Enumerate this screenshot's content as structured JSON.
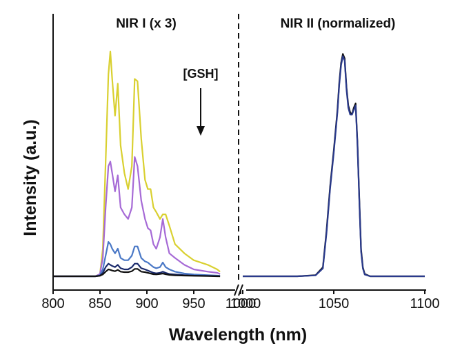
{
  "chart_data": {
    "type": "line",
    "xlabel": "Wavelength (nm)",
    "ylabel": "Intensity (a.u.)",
    "panels": [
      {
        "title": "NIR I (x 3)",
        "xlim": [
          800,
          1000
        ],
        "xticks": [
          800,
          850,
          900,
          950,
          1000
        ],
        "annotation": "[GSH]",
        "arrow_direction": "down",
        "series": [
          {
            "name": "yellow",
            "color": "#d9d030",
            "x": [
              800,
              845,
              850,
              853,
              856,
              859,
              861,
              863,
              866,
              869,
              872,
              876,
              880,
              884,
              887,
              890,
              894,
              898,
              901,
              904,
              907,
              910,
              914,
              917,
              920,
              924,
              930,
              940,
              950,
              965,
              975,
              978
            ],
            "y": [
              0,
              0,
              0.01,
              0.12,
              0.5,
              0.88,
              0.98,
              0.86,
              0.7,
              0.84,
              0.57,
              0.45,
              0.38,
              0.48,
              0.86,
              0.85,
              0.6,
              0.42,
              0.38,
              0.38,
              0.3,
              0.28,
              0.25,
              0.27,
              0.27,
              0.22,
              0.14,
              0.1,
              0.07,
              0.05,
              0.03,
              0.02
            ]
          },
          {
            "name": "purple",
            "color": "#a66ad6",
            "x": [
              800,
              845,
              850,
              853,
              856,
              859,
              861,
              863,
              866,
              869,
              872,
              876,
              880,
              884,
              887,
              890,
              894,
              898,
              901,
              904,
              907,
              910,
              914,
              917,
              920,
              924,
              930,
              940,
              950,
              965,
              975,
              978
            ],
            "y": [
              0,
              0,
              0.01,
              0.08,
              0.3,
              0.48,
              0.5,
              0.45,
              0.37,
              0.44,
              0.3,
              0.27,
              0.25,
              0.3,
              0.52,
              0.48,
              0.33,
              0.25,
              0.21,
              0.2,
              0.14,
              0.12,
              0.17,
              0.25,
              0.17,
              0.1,
              0.08,
              0.05,
              0.03,
              0.02,
              0.015,
              0.01
            ]
          },
          {
            "name": "blue",
            "color": "#4a78c6",
            "x": [
              800,
              845,
              850,
              853,
              856,
              859,
              861,
              863,
              866,
              869,
              872,
              876,
              880,
              884,
              887,
              890,
              894,
              898,
              901,
              904,
              907,
              910,
              914,
              917,
              920,
              924,
              930,
              940,
              950,
              965,
              975,
              978
            ],
            "y": [
              0,
              0,
              0.005,
              0.03,
              0.09,
              0.15,
              0.14,
              0.12,
              0.1,
              0.12,
              0.08,
              0.07,
              0.07,
              0.09,
              0.13,
              0.13,
              0.08,
              0.065,
              0.06,
              0.05,
              0.04,
              0.035,
              0.04,
              0.06,
              0.04,
              0.03,
              0.02,
              0.012,
              0.008,
              0.005,
              0.003,
              0.002
            ]
          },
          {
            "name": "navy",
            "color": "#1a2a6c",
            "x": [
              800,
              845,
              850,
              853,
              856,
              859,
              861,
              863,
              866,
              869,
              872,
              876,
              880,
              884,
              887,
              890,
              894,
              898,
              901,
              904,
              907,
              910,
              914,
              917,
              920,
              924,
              930,
              940,
              950,
              965,
              975,
              978
            ],
            "y": [
              0,
              0,
              0.003,
              0.015,
              0.04,
              0.055,
              0.05,
              0.045,
              0.04,
              0.05,
              0.035,
              0.03,
              0.03,
              0.04,
              0.055,
              0.055,
              0.035,
              0.03,
              0.025,
              0.02,
              0.015,
              0.013,
              0.015,
              0.02,
              0.015,
              0.01,
              0.008,
              0.005,
              0.003,
              0.002,
              0.001,
              0
            ]
          },
          {
            "name": "black",
            "color": "#111111",
            "x": [
              800,
              845,
              850,
              853,
              856,
              859,
              861,
              863,
              866,
              869,
              872,
              876,
              880,
              884,
              887,
              890,
              894,
              898,
              901,
              904,
              907,
              910,
              914,
              917,
              920,
              924,
              930,
              940,
              950,
              965,
              975,
              978
            ],
            "y": [
              0,
              0,
              0.002,
              0.008,
              0.02,
              0.03,
              0.028,
              0.025,
              0.022,
              0.028,
              0.02,
              0.018,
              0.018,
              0.022,
              0.032,
              0.032,
              0.02,
              0.018,
              0.015,
              0.012,
              0.009,
              0.008,
              0.01,
              0.012,
              0.009,
              0.006,
              0.004,
              0.003,
              0.002,
              0.001,
              0,
              0
            ]
          }
        ]
      },
      {
        "title": "NIR II (normalized)",
        "xlim": [
          1000,
          1100
        ],
        "xticks": [
          1000,
          1050,
          1100
        ],
        "series": [
          {
            "name": "black",
            "color": "#111111",
            "x": [
              1000,
              1030,
              1040,
              1044,
              1046,
              1048,
              1050,
              1052,
              1053,
              1054,
              1055,
              1056,
              1057,
              1058,
              1059,
              1060,
              1061,
              1062,
              1063,
              1064,
              1065,
              1066,
              1067,
              1070,
              1075,
              1080,
              1090,
              1100
            ],
            "y": [
              0,
              0,
              0.005,
              0.04,
              0.2,
              0.4,
              0.56,
              0.74,
              0.86,
              0.95,
              0.99,
              0.97,
              0.84,
              0.76,
              0.73,
              0.72,
              0.75,
              0.77,
              0.6,
              0.35,
              0.12,
              0.04,
              0.01,
              0,
              0,
              0,
              0,
              0
            ]
          },
          {
            "name": "navy",
            "color": "#2a3a8c",
            "x": [
              1000,
              1030,
              1040,
              1044,
              1046,
              1048,
              1050,
              1052,
              1053,
              1054,
              1055,
              1056,
              1057,
              1058,
              1059,
              1060,
              1061,
              1062,
              1063,
              1064,
              1065,
              1066,
              1067,
              1070,
              1075,
              1080,
              1090,
              1100
            ],
            "y": [
              0,
              0,
              0.004,
              0.035,
              0.19,
              0.39,
              0.55,
              0.73,
              0.85,
              0.94,
              0.98,
              0.96,
              0.83,
              0.75,
              0.72,
              0.72,
              0.74,
              0.76,
              0.59,
              0.34,
              0.11,
              0.035,
              0.008,
              0,
              0,
              0,
              0,
              0
            ]
          }
        ]
      }
    ]
  }
}
